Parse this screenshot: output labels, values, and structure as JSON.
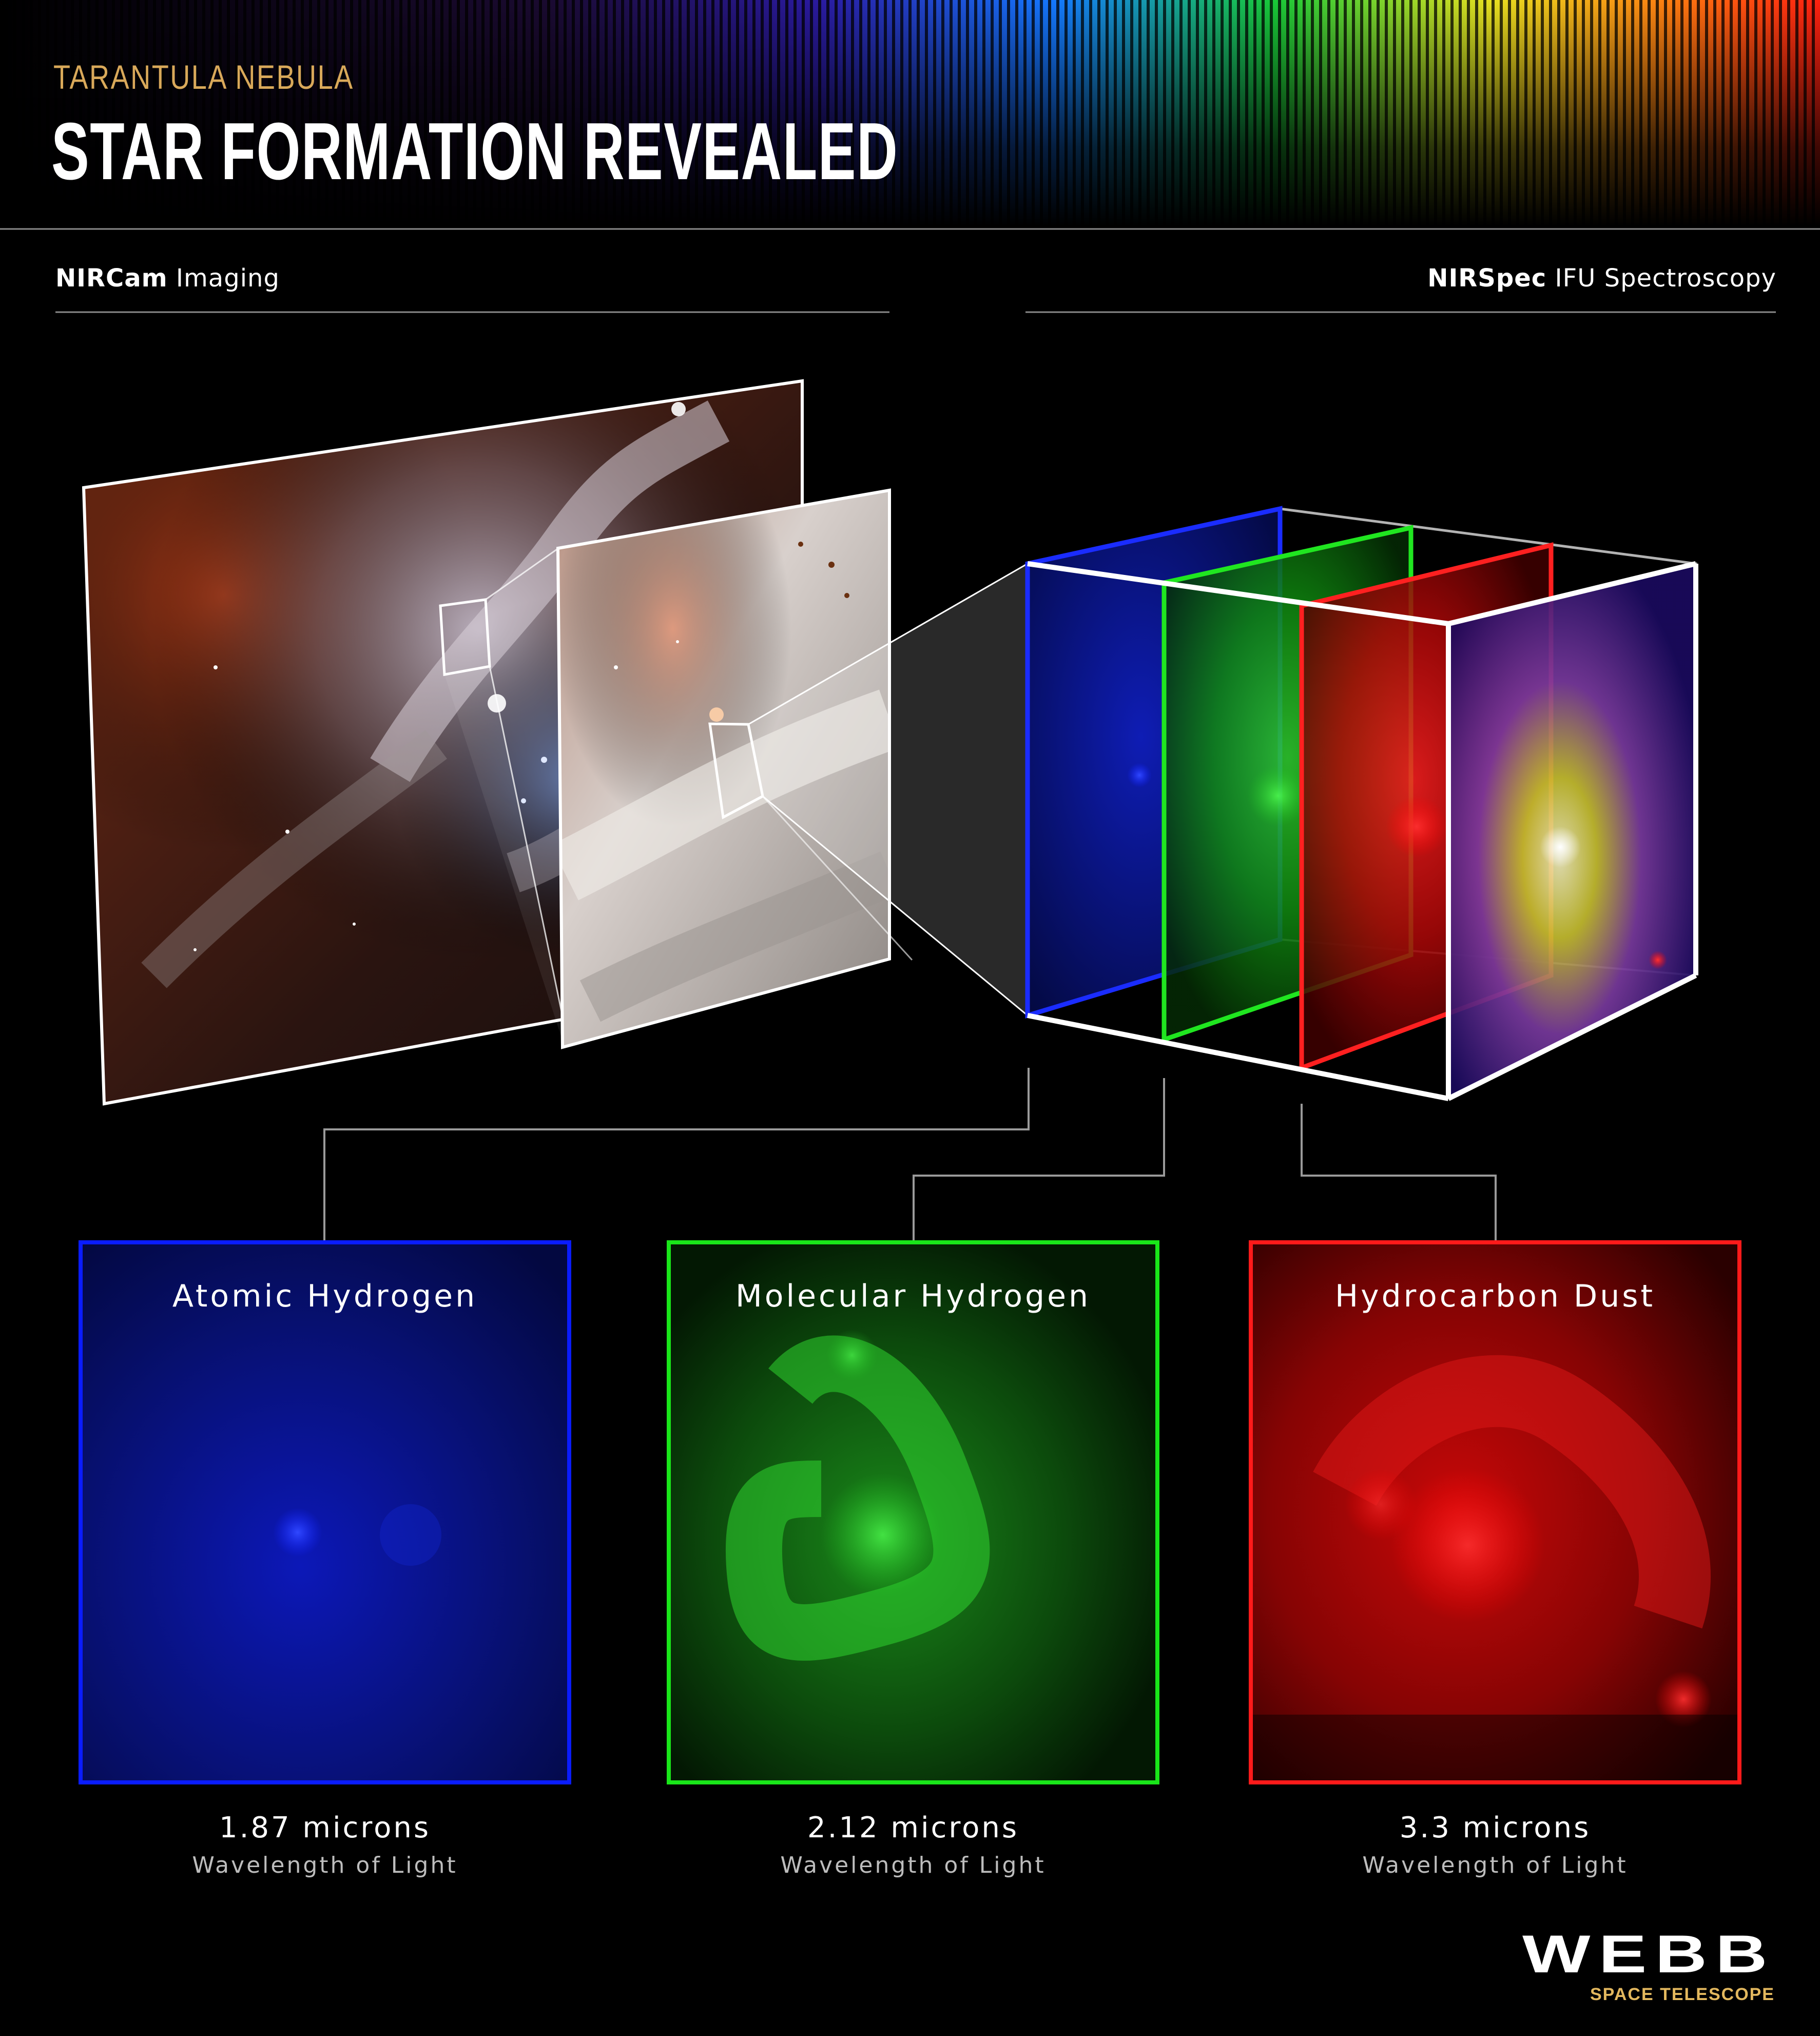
{
  "header": {
    "kicker": "TARANTULA NEBULA",
    "title": "STAR FORMATION REVEALED"
  },
  "sections": {
    "left": {
      "instrument": "NIRCam",
      "mode": "Imaging"
    },
    "right": {
      "instrument": "NIRSpec",
      "mode": "IFU Spectroscopy"
    }
  },
  "panels": [
    {
      "title": "Atomic Hydrogen",
      "wavelength": "1.87 microns",
      "caption": "Wavelength of Light",
      "color": "#0a1cff"
    },
    {
      "title": "Molecular Hydrogen",
      "wavelength": "2.12 microns",
      "caption": "Wavelength of Light",
      "color": "#19e619"
    },
    {
      "title": "Hydrocarbon Dust",
      "wavelength": "3.3 microns",
      "caption": "Wavelength of Light",
      "color": "#ff1a1a"
    }
  ],
  "logo": {
    "wordmark": "WEBB",
    "subtitle": "SPACE TELESCOPE"
  }
}
